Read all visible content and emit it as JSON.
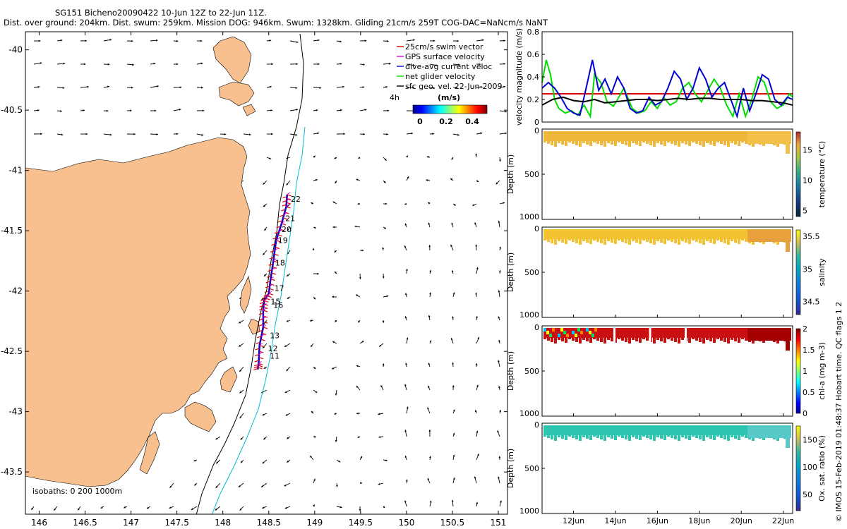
{
  "header": {
    "line1": "SG151 Bicheno20090422 10-Jun 12Z to 22-Jun 11Z.",
    "line2": "Dist. over ground: 204km. Dist. swum: 259km. Mission DOG: 946km. Swum: 1328km. Gliding 21cm/s 259T COG-DAC=NaNcm/s NaNT"
  },
  "credit": "© IMOS 15-Feb-2019 01:48:37 Hobart time. QC flags 1 2",
  "colors": {
    "land": "#f9c08f",
    "isobath_200": "#000000",
    "isobath_1000": "#00bcd4",
    "swim": "#e00000",
    "gps": "#e000e0",
    "dac": "#0000d0",
    "net": "#00dd00",
    "geo": "#000000"
  },
  "chart_data": [
    {
      "type": "map",
      "xlim": [
        145.85,
        151.1
      ],
      "ylim": [
        -43.85,
        -39.85
      ],
      "x_ticks": [
        "146",
        "146.5",
        "147",
        "147.5",
        "148",
        "148.5",
        "149",
        "149.5",
        "150",
        "150.5",
        "151"
      ],
      "y_ticks": [
        "-40",
        "-40.5",
        "-41",
        "-41.5",
        "-42",
        "-42.5",
        "-43",
        "-43.5"
      ],
      "legend": {
        "position": "top-right",
        "items": [
          "25cm/s swim vector",
          "GPS surface velocity",
          "dive-avg current veloc",
          "net glider velocity",
          "sfc geo. vel. 22-Jun-2009"
        ],
        "time_label": "4h",
        "colorbar_label": "(m/s)",
        "colorbar_ticks": [
          "0",
          "0.2",
          "0.4"
        ]
      },
      "isobaths_label": "isobaths: 0   200   1000m",
      "day_labels": [
        {
          "text": "22",
          "lon": 148.74,
          "lat": -41.26
        },
        {
          "text": "21",
          "lon": 148.68,
          "lat": -41.42
        },
        {
          "text": "20",
          "lon": 148.64,
          "lat": -41.51
        },
        {
          "text": "19",
          "lon": 148.6,
          "lat": -41.6
        },
        {
          "text": "18",
          "lon": 148.57,
          "lat": -41.79
        },
        {
          "text": "17",
          "lon": 148.56,
          "lat": -42.0
        },
        {
          "text": "16",
          "lon": 148.55,
          "lat": -42.14
        },
        {
          "text": "15",
          "lon": 148.52,
          "lat": -42.11
        },
        {
          "text": "13",
          "lon": 148.51,
          "lat": -42.39
        },
        {
          "text": "12",
          "lon": 148.49,
          "lat": -42.5
        },
        {
          "text": "11",
          "lon": 148.51,
          "lat": -42.56
        }
      ],
      "track": [
        [
          148.7,
          -41.2
        ],
        [
          148.69,
          -41.3
        ],
        [
          148.64,
          -41.44
        ],
        [
          148.58,
          -41.58
        ],
        [
          148.55,
          -41.75
        ],
        [
          148.52,
          -41.9
        ],
        [
          148.5,
          -42.02
        ],
        [
          148.45,
          -42.08
        ],
        [
          148.44,
          -42.16
        ],
        [
          148.44,
          -42.3
        ],
        [
          148.4,
          -42.45
        ],
        [
          148.39,
          -42.6
        ],
        [
          148.38,
          -42.65
        ]
      ]
    },
    {
      "type": "line",
      "ylabel": "velocity magnitude (m/s)",
      "ylim": [
        0,
        0.8
      ],
      "y_ticks": [
        "0",
        "0.2",
        "0.4",
        "0.6",
        "0.8"
      ],
      "xlim": [
        10.5,
        22.45
      ],
      "series": [
        {
          "color": "#e00000",
          "x": [
            10.5,
            22.45
          ],
          "values": [
            0.25,
            0.25
          ]
        },
        {
          "color": "#00dd00",
          "x": [
            10.5,
            10.7,
            10.9,
            11.1,
            11.3,
            11.6,
            11.9,
            12.2,
            12.5,
            12.8,
            13.0,
            13.3,
            13.6,
            13.9,
            14.1,
            14.4,
            14.8,
            15.1,
            15.4,
            15.7,
            16.0,
            16.3,
            16.6,
            16.9,
            17.2,
            17.5,
            17.8,
            18.1,
            18.4,
            18.7,
            19.0,
            19.3,
            19.6,
            19.9,
            20.2,
            20.5,
            20.8,
            21.1,
            21.4,
            21.7,
            22.0,
            22.3,
            22.45
          ],
          "values": [
            0.35,
            0.55,
            0.42,
            0.2,
            0.12,
            0.08,
            0.1,
            0.06,
            0.15,
            0.05,
            0.42,
            0.35,
            0.18,
            0.14,
            0.2,
            0.3,
            0.12,
            0.08,
            0.1,
            0.18,
            0.12,
            0.22,
            0.15,
            0.18,
            0.3,
            0.35,
            0.25,
            0.18,
            0.28,
            0.38,
            0.3,
            0.15,
            0.05,
            0.25,
            0.05,
            0.2,
            0.4,
            0.35,
            0.18,
            0.12,
            0.15,
            0.25,
            0.22
          ]
        },
        {
          "color": "#0000d0",
          "x": [
            10.5,
            10.8,
            11.1,
            11.4,
            11.7,
            12.0,
            12.3,
            12.6,
            12.9,
            13.2,
            13.5,
            13.8,
            14.1,
            14.4,
            14.7,
            15.0,
            15.3,
            15.6,
            15.9,
            16.2,
            16.5,
            16.8,
            17.1,
            17.4,
            17.7,
            18.0,
            18.3,
            18.6,
            18.9,
            19.2,
            19.5,
            19.8,
            20.1,
            20.4,
            20.7,
            21.0,
            21.3,
            21.6,
            21.9,
            22.2,
            22.45
          ],
          "values": [
            0.3,
            0.35,
            0.3,
            0.22,
            0.12,
            0.08,
            0.06,
            0.3,
            0.55,
            0.28,
            0.38,
            0.25,
            0.4,
            0.3,
            0.12,
            0.08,
            0.1,
            0.22,
            0.15,
            0.18,
            0.3,
            0.45,
            0.38,
            0.2,
            0.3,
            0.48,
            0.38,
            0.22,
            0.3,
            0.35,
            0.2,
            0.05,
            0.3,
            0.1,
            0.25,
            0.42,
            0.38,
            0.2,
            0.15,
            0.22,
            0.2
          ]
        },
        {
          "color": "#000000",
          "x": [
            10.5,
            11.0,
            11.5,
            12.0,
            12.5,
            13.0,
            13.5,
            14.0,
            14.5,
            15.0,
            15.5,
            16.0,
            16.5,
            17.0,
            17.5,
            18.0,
            18.5,
            19.0,
            19.5,
            20.0,
            20.5,
            21.0,
            21.5,
            22.0,
            22.45
          ],
          "values": [
            0.15,
            0.2,
            0.22,
            0.19,
            0.18,
            0.2,
            0.17,
            0.18,
            0.19,
            0.2,
            0.2,
            0.19,
            0.2,
            0.21,
            0.2,
            0.21,
            0.21,
            0.2,
            0.2,
            0.2,
            0.19,
            0.19,
            0.18,
            0.17,
            0.15
          ]
        }
      ]
    },
    {
      "type": "heatmap",
      "ylabel": "Depth (m)",
      "y_ticks": [
        "0",
        "500",
        "1000"
      ],
      "colorbar_label": "temperature (°C)",
      "colorbar_ticks": [
        "5",
        "10",
        "15"
      ],
      "colorbar_range": [
        4,
        18
      ],
      "x_ticks": [],
      "base_value": 16,
      "end_value": 15
    },
    {
      "type": "heatmap",
      "ylabel": "Depth (m)",
      "y_ticks": [
        "0",
        "500",
        "1000"
      ],
      "colorbar_label": "salinity",
      "colorbar_ticks": [
        "34.5",
        "35",
        "35.5"
      ],
      "colorbar_range": [
        34.3,
        35.6
      ],
      "x_ticks": [],
      "base_value": 35.3,
      "end_value": 35.45
    },
    {
      "type": "heatmap",
      "ylabel": "Depth (m)",
      "y_ticks": [
        "0",
        "500",
        "1000"
      ],
      "colorbar_label": "chl-a (mg m-3)",
      "colorbar_ticks": [
        "0",
        "0.5",
        "1",
        "1.5",
        "2"
      ],
      "colorbar_range": [
        0,
        2
      ],
      "x_ticks": [],
      "base_value": 2,
      "end_value": 2
    },
    {
      "type": "heatmap",
      "ylabel": "Depth (m)",
      "y_ticks": [
        "0",
        "500",
        "1000"
      ],
      "colorbar_label": "Ox. sat. ratio (%)",
      "colorbar_ticks": [
        "50",
        "100",
        "150"
      ],
      "colorbar_range": [
        20,
        175
      ],
      "x_ticks": [
        "12Jun",
        "14Jun",
        "16Jun",
        "18Jun",
        "20Jun",
        "22Jun"
      ],
      "base_value": 85,
      "end_value": 70
    }
  ]
}
